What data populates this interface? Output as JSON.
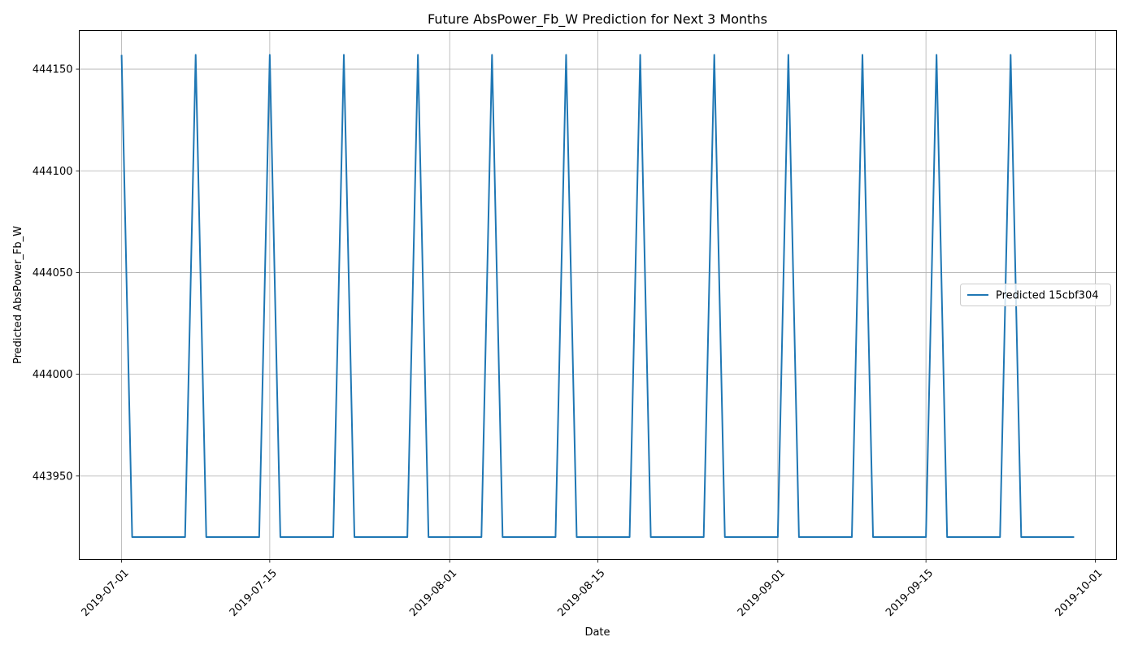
{
  "chart_data": {
    "type": "line",
    "title": "Future AbsPower_Fb_W Prediction for Next 3 Months",
    "xlabel": "Date",
    "ylabel": "Predicted AbsPower_Fb_W",
    "xlim": [
      "2019-06-27",
      "2019-10-03"
    ],
    "ylim": [
      443909,
      444169
    ],
    "x_ticks": [
      "2019-07-01",
      "2019-07-15",
      "2019-08-01",
      "2019-08-15",
      "2019-09-01",
      "2019-09-15",
      "2019-10-01"
    ],
    "y_ticks": [
      443950,
      444000,
      444050,
      444100,
      444150
    ],
    "grid": true,
    "legend_position": "center-right",
    "colors": {
      "series": "#1f77b4",
      "grid": "#b0b0b0"
    },
    "series": [
      {
        "name": "Predicted 15cbf304",
        "high": 444157,
        "low": 443920,
        "start_date": "2019-07-01",
        "end_date": "2019-09-29",
        "peak_dates": [
          "2019-07-01",
          "2019-07-08",
          "2019-07-15",
          "2019-07-22",
          "2019-07-29",
          "2019-08-05",
          "2019-08-12",
          "2019-08-19",
          "2019-08-26",
          "2019-09-02",
          "2019-09-09",
          "2019-09-16",
          "2019-09-23"
        ]
      }
    ]
  }
}
